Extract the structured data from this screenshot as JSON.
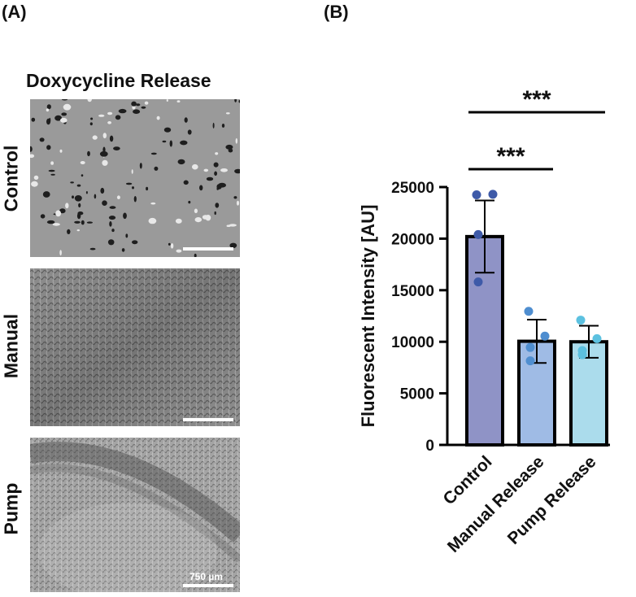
{
  "panel_a": {
    "label": "(A)",
    "title": "Doxycycline Release",
    "rows": [
      {
        "label": "Control",
        "texture": "sparse-dark-clusters"
      },
      {
        "label": "Manual",
        "texture": "uniform-fine-mesh"
      },
      {
        "label": "Pump",
        "texture": "fine-mesh-with-dark-band"
      }
    ],
    "scale_bar_label": "750 µm"
  },
  "panel_b": {
    "label": "(B)",
    "significance": [
      "***",
      "***"
    ]
  },
  "chart_data": {
    "type": "bar",
    "title": "",
    "xlabel": "",
    "ylabel": "Fluorescent Intensity [AU]",
    "ylim": [
      0,
      25000
    ],
    "yticks": [
      0,
      5000,
      10000,
      15000,
      20000,
      25000
    ],
    "categories": [
      "Control",
      "Manual Release",
      "Pump Release"
    ],
    "values": [
      20200,
      10050,
      10000
    ],
    "error": [
      3500,
      2100,
      1550
    ],
    "points": [
      [
        24250,
        24300,
        20400,
        15800
      ],
      [
        12950,
        10550,
        9450,
        8150
      ],
      [
        12100,
        10300,
        9150,
        8750
      ]
    ],
    "bar_colors": [
      "#8f93c6",
      "#9fbbe5",
      "#abdcec"
    ],
    "point_colors": [
      "#3e5aa8",
      "#4f8ed0",
      "#5cc1e0"
    ],
    "significance": [
      {
        "from": "Control",
        "to": "Manual Release",
        "label": "***"
      },
      {
        "from": "Control",
        "to": "Pump Release",
        "label": "***"
      }
    ],
    "grid": false
  }
}
